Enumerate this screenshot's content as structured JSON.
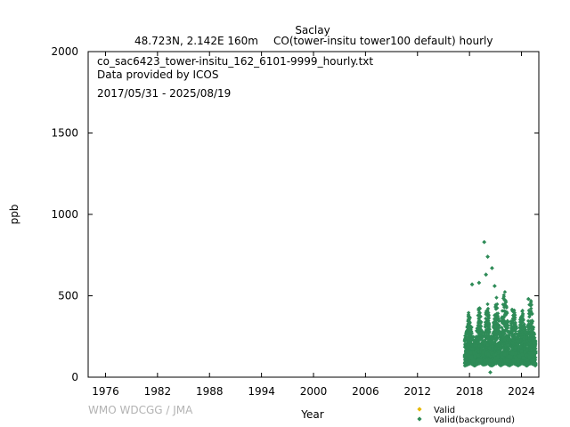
{
  "header": {
    "station": "Saclay",
    "location": "48.723N, 2.142E 160m",
    "species": "CO(tower-insitu tower100 default) hourly"
  },
  "info": {
    "filename": "co_sac6423_tower-insitu_162_6101-9999_hourly.txt",
    "provider": "Data provided by ICOS",
    "period": "2017/05/31 - 2025/08/19"
  },
  "credit": "WMO WDCGG / JMA",
  "colors": {
    "valid": "#e6b800",
    "background": "#2e8b57"
  },
  "chart_data": {
    "type": "scatter",
    "xlabel": "Year",
    "ylabel": "ppb",
    "xlim": [
      1974,
      2026
    ],
    "ylim": [
      0,
      2000
    ],
    "xticks": [
      1976,
      1982,
      1988,
      1994,
      2000,
      2006,
      2012,
      2018,
      2024
    ],
    "yticks": [
      0,
      500,
      1000,
      1500,
      2000
    ],
    "legend": "bottom-right",
    "grid": false,
    "series": [
      {
        "name": "Valid",
        "marker": "diamond",
        "color": "#e6b800",
        "points": []
      },
      {
        "name": "Valid(background)",
        "marker": "diamond",
        "color": "#2e8b57",
        "envelope": [
          {
            "x": 2017.45,
            "min": 70,
            "max": 250
          },
          {
            "x": 2017.7,
            "min": 75,
            "max": 330
          },
          {
            "x": 2017.9,
            "min": 80,
            "max": 400
          },
          {
            "x": 2018.1,
            "min": 85,
            "max": 380
          },
          {
            "x": 2018.3,
            "min": 80,
            "max": 300
          },
          {
            "x": 2018.6,
            "min": 70,
            "max": 200
          },
          {
            "x": 2018.9,
            "min": 80,
            "max": 350
          },
          {
            "x": 2019.1,
            "min": 85,
            "max": 470
          },
          {
            "x": 2019.3,
            "min": 85,
            "max": 380
          },
          {
            "x": 2019.6,
            "min": 75,
            "max": 220
          },
          {
            "x": 2019.9,
            "min": 80,
            "max": 400
          },
          {
            "x": 2020.1,
            "min": 85,
            "max": 480
          },
          {
            "x": 2020.3,
            "min": 75,
            "max": 330
          },
          {
            "x": 2020.6,
            "min": 70,
            "max": 230
          },
          {
            "x": 2020.9,
            "min": 80,
            "max": 430
          },
          {
            "x": 2021.1,
            "min": 85,
            "max": 500
          },
          {
            "x": 2021.3,
            "min": 80,
            "max": 400
          },
          {
            "x": 2021.6,
            "min": 70,
            "max": 240
          },
          {
            "x": 2021.9,
            "min": 80,
            "max": 540
          },
          {
            "x": 2022.1,
            "min": 85,
            "max": 560
          },
          {
            "x": 2022.3,
            "min": 80,
            "max": 420
          },
          {
            "x": 2022.6,
            "min": 70,
            "max": 250
          },
          {
            "x": 2022.9,
            "min": 80,
            "max": 430
          },
          {
            "x": 2023.1,
            "min": 85,
            "max": 450
          },
          {
            "x": 2023.3,
            "min": 80,
            "max": 360
          },
          {
            "x": 2023.6,
            "min": 70,
            "max": 240
          },
          {
            "x": 2023.9,
            "min": 80,
            "max": 380
          },
          {
            "x": 2024.1,
            "min": 85,
            "max": 420
          },
          {
            "x": 2024.3,
            "min": 80,
            "max": 330
          },
          {
            "x": 2024.6,
            "min": 70,
            "max": 260
          },
          {
            "x": 2024.9,
            "min": 80,
            "max": 450
          },
          {
            "x": 2025.1,
            "min": 85,
            "max": 480
          },
          {
            "x": 2025.3,
            "min": 80,
            "max": 330
          },
          {
            "x": 2025.63,
            "min": 70,
            "max": 240
          }
        ],
        "outliers": [
          {
            "x": 2019.7,
            "y": 830
          },
          {
            "x": 2020.1,
            "y": 740
          },
          {
            "x": 2020.6,
            "y": 670
          },
          {
            "x": 2019.9,
            "y": 630
          },
          {
            "x": 2018.3,
            "y": 570
          },
          {
            "x": 2019.1,
            "y": 580
          },
          {
            "x": 2020.9,
            "y": 560
          },
          {
            "x": 2024.8,
            "y": 480
          },
          {
            "x": 2020.4,
            "y": 30
          }
        ]
      }
    ]
  }
}
